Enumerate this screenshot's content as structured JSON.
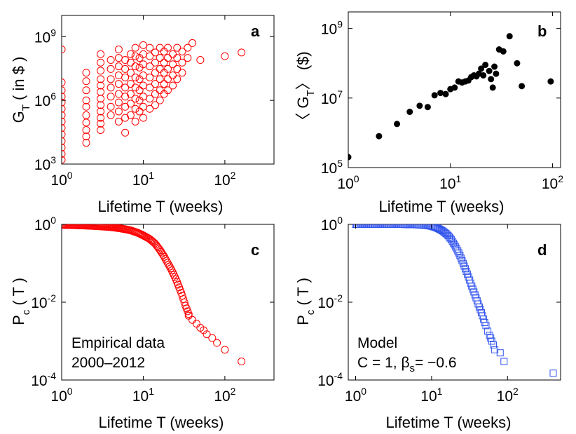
{
  "chart_data": [
    {
      "id": "a",
      "type": "scatter",
      "panel_label": "a",
      "xlabel": "Lifetime T (weeks)",
      "ylabel": {
        "main": "G",
        "sub": "T",
        "rest": " ( in $ )"
      },
      "x_scale": "log",
      "y_scale": "log",
      "xlim": [
        1,
        400
      ],
      "ylim": [
        1000,
        10000000000
      ],
      "x_ticks": [
        {
          "base": "10",
          "exp": "0",
          "value": 1
        },
        {
          "base": "10",
          "exp": "1",
          "value": 10
        },
        {
          "base": "10",
          "exp": "2",
          "value": 100
        }
      ],
      "y_ticks": [
        {
          "base": "10",
          "exp": "3",
          "value": 1000
        },
        {
          "base": "10",
          "exp": "6",
          "value": 1000000
        },
        {
          "base": "10",
          "exp": "9",
          "value": 1000000000
        }
      ],
      "marker": "open-circle",
      "color": "#ff0000",
      "points": [
        [
          1,
          1600
        ],
        [
          1,
          3000
        ],
        [
          1,
          6000
        ],
        [
          1,
          12000
        ],
        [
          1,
          25000
        ],
        [
          1,
          50000
        ],
        [
          1,
          100000
        ],
        [
          1,
          200000
        ],
        [
          1,
          400000
        ],
        [
          1,
          800000
        ],
        [
          1,
          1500000
        ],
        [
          1,
          3000000
        ],
        [
          1,
          7000000
        ],
        [
          1,
          250000000
        ],
        [
          2,
          10000
        ],
        [
          2,
          20000
        ],
        [
          2,
          40000
        ],
        [
          2,
          90000
        ],
        [
          2,
          200000
        ],
        [
          2,
          500000
        ],
        [
          2,
          1000000
        ],
        [
          2,
          3000000
        ],
        [
          2,
          8000000
        ],
        [
          2,
          20000000
        ],
        [
          3,
          40000
        ],
        [
          3,
          80000
        ],
        [
          3,
          150000
        ],
        [
          3,
          300000
        ],
        [
          3,
          600000
        ],
        [
          3,
          1200000
        ],
        [
          3,
          2500000
        ],
        [
          3,
          5000000
        ],
        [
          3,
          10000000
        ],
        [
          3,
          25000000
        ],
        [
          3,
          60000000
        ],
        [
          3,
          150000000
        ],
        [
          4,
          200000
        ],
        [
          4,
          500000
        ],
        [
          4,
          1500000
        ],
        [
          4,
          4000000
        ],
        [
          4,
          10000000
        ],
        [
          4,
          30000000
        ],
        [
          4,
          80000000
        ],
        [
          5,
          100000
        ],
        [
          5,
          300000
        ],
        [
          5,
          800000
        ],
        [
          5,
          2000000
        ],
        [
          5,
          6000000
        ],
        [
          5,
          15000000
        ],
        [
          5,
          40000000
        ],
        [
          5,
          100000000
        ],
        [
          5,
          250000000
        ],
        [
          6,
          30000
        ],
        [
          6,
          150000
        ],
        [
          6,
          500000
        ],
        [
          6,
          1500000
        ],
        [
          6,
          4000000
        ],
        [
          6,
          12000000
        ],
        [
          6,
          30000000
        ],
        [
          6,
          80000000
        ],
        [
          7,
          200000
        ],
        [
          7,
          700000
        ],
        [
          7,
          2000000
        ],
        [
          7,
          6000000
        ],
        [
          7,
          20000000
        ],
        [
          7,
          60000000
        ],
        [
          7,
          150000000
        ],
        [
          8,
          100000
        ],
        [
          8,
          400000
        ],
        [
          8,
          1200000
        ],
        [
          8,
          4000000
        ],
        [
          8,
          12000000
        ],
        [
          8,
          40000000
        ],
        [
          8,
          120000000
        ],
        [
          8,
          300000000
        ],
        [
          9,
          300000
        ],
        [
          9,
          1000000
        ],
        [
          9,
          3000000
        ],
        [
          9,
          10000000
        ],
        [
          9,
          35000000
        ],
        [
          9,
          100000000
        ],
        [
          10,
          150000
        ],
        [
          10,
          500000
        ],
        [
          10,
          1500000
        ],
        [
          10,
          5000000
        ],
        [
          10,
          15000000
        ],
        [
          10,
          50000000
        ],
        [
          10,
          150000000
        ],
        [
          10,
          400000000
        ],
        [
          12,
          400000
        ],
        [
          12,
          1200000
        ],
        [
          12,
          4000000
        ],
        [
          12,
          12000000
        ],
        [
          12,
          40000000
        ],
        [
          12,
          120000000
        ],
        [
          12,
          300000000
        ],
        [
          14,
          600000
        ],
        [
          14,
          2000000
        ],
        [
          14,
          6000000
        ],
        [
          14,
          20000000
        ],
        [
          14,
          60000000
        ],
        [
          14,
          180000000
        ],
        [
          16,
          1000000
        ],
        [
          16,
          3000000
        ],
        [
          16,
          10000000
        ],
        [
          16,
          30000000
        ],
        [
          16,
          100000000
        ],
        [
          16,
          300000000
        ],
        [
          18,
          2000000
        ],
        [
          18,
          6000000
        ],
        [
          18,
          20000000
        ],
        [
          18,
          60000000
        ],
        [
          18,
          200000000
        ],
        [
          20,
          3000000
        ],
        [
          20,
          10000000
        ],
        [
          20,
          30000000
        ],
        [
          20,
          100000000
        ],
        [
          20,
          300000000
        ],
        [
          23,
          5000000
        ],
        [
          23,
          15000000
        ],
        [
          23,
          50000000
        ],
        [
          23,
          150000000
        ],
        [
          26,
          10000000
        ],
        [
          26,
          30000000
        ],
        [
          26,
          100000000
        ],
        [
          26,
          300000000
        ],
        [
          30,
          20000000
        ],
        [
          30,
          60000000
        ],
        [
          30,
          200000000
        ],
        [
          35,
          100000000
        ],
        [
          35,
          300000000
        ],
        [
          40,
          500000000
        ],
        [
          50,
          80000000
        ],
        [
          100,
          120000000
        ],
        [
          160,
          180000000
        ]
      ]
    },
    {
      "id": "b",
      "type": "scatter",
      "panel_label": "b",
      "xlabel": "Lifetime T (weeks)",
      "ylabel": {
        "main": "〈 G",
        "sub": "T",
        "rest": "〉 ($)"
      },
      "x_scale": "log",
      "y_scale": "log",
      "xlim": [
        1,
        120
      ],
      "ylim": [
        100000,
        3000000000
      ],
      "x_ticks": [
        {
          "base": "10",
          "exp": "0",
          "value": 1
        },
        {
          "base": "10",
          "exp": "1",
          "value": 10
        },
        {
          "base": "10",
          "exp": "2",
          "value": 100
        }
      ],
      "y_ticks": [
        {
          "base": "10",
          "exp": "5",
          "value": 100000
        },
        {
          "base": "10",
          "exp": "7",
          "value": 10000000
        },
        {
          "base": "10",
          "exp": "9",
          "value": 1000000000
        }
      ],
      "marker": "filled-circle",
      "color": "#000000",
      "points": [
        [
          1,
          200000
        ],
        [
          2,
          800000
        ],
        [
          3,
          1800000
        ],
        [
          4,
          4000000
        ],
        [
          5,
          6000000
        ],
        [
          6,
          5500000
        ],
        [
          7,
          12000000
        ],
        [
          8,
          14000000
        ],
        [
          9,
          13000000
        ],
        [
          10,
          18000000
        ],
        [
          11,
          20000000
        ],
        [
          12,
          30000000
        ],
        [
          13,
          28000000
        ],
        [
          14,
          30000000
        ],
        [
          15,
          32000000
        ],
        [
          16,
          40000000
        ],
        [
          17,
          45000000
        ],
        [
          18,
          42000000
        ],
        [
          19,
          50000000
        ],
        [
          20,
          70000000
        ],
        [
          21,
          45000000
        ],
        [
          22,
          90000000
        ],
        [
          24,
          60000000
        ],
        [
          25,
          35000000
        ],
        [
          26,
          20000000
        ],
        [
          27,
          80000000
        ],
        [
          28,
          50000000
        ],
        [
          30,
          250000000
        ],
        [
          33,
          220000000
        ],
        [
          38,
          600000000
        ],
        [
          45,
          100000000
        ],
        [
          50,
          22000000
        ],
        [
          96,
          30000000
        ]
      ]
    },
    {
      "id": "c",
      "type": "scatter",
      "panel_label": "c",
      "xlabel": "Lifetime T (weeks)",
      "ylabel": {
        "main": "P",
        "sub": "c",
        "rest": " ( T )"
      },
      "x_scale": "log",
      "y_scale": "log",
      "xlim": [
        1,
        400
      ],
      "ylim": [
        0.0001,
        1
      ],
      "x_ticks": [
        {
          "base": "10",
          "exp": "0",
          "value": 1
        },
        {
          "base": "10",
          "exp": "1",
          "value": 10
        },
        {
          "base": "10",
          "exp": "2",
          "value": 100
        }
      ],
      "y_ticks": [
        {
          "base": "10",
          "exp": "-4",
          "value": 0.0001
        },
        {
          "base": "10",
          "exp": "-2",
          "value": 0.01
        },
        {
          "base": "10",
          "exp": "0",
          "value": 1
        }
      ],
      "marker": "open-circle",
      "color": "#ff0000",
      "annotation": [
        "Empirical data",
        "2000–2012"
      ],
      "curve": [
        [
          1,
          0.97
        ],
        [
          1.2,
          0.96
        ],
        [
          1.5,
          0.95
        ],
        [
          2,
          0.93
        ],
        [
          2.5,
          0.91
        ],
        [
          3,
          0.89
        ],
        [
          4,
          0.85
        ],
        [
          5,
          0.8
        ],
        [
          6,
          0.75
        ],
        [
          7,
          0.7
        ],
        [
          8,
          0.64
        ],
        [
          9,
          0.58
        ],
        [
          10,
          0.52
        ],
        [
          12,
          0.42
        ],
        [
          14,
          0.32
        ],
        [
          16,
          0.22
        ],
        [
          18,
          0.15
        ],
        [
          20,
          0.1
        ],
        [
          22,
          0.07
        ],
        [
          25,
          0.04
        ],
        [
          28,
          0.022
        ],
        [
          30,
          0.015
        ],
        [
          33,
          0.008
        ],
        [
          36,
          0.005
        ]
      ],
      "tail": [
        [
          36,
          0.0045
        ],
        [
          40,
          0.0035
        ],
        [
          45,
          0.0028
        ],
        [
          50,
          0.0022
        ],
        [
          55,
          0.0019
        ],
        [
          60,
          0.0015
        ],
        [
          70,
          0.0012
        ],
        [
          80,
          0.0009
        ],
        [
          100,
          0.0006
        ],
        [
          160,
          0.0003
        ]
      ]
    },
    {
      "id": "d",
      "type": "scatter",
      "panel_label": "d",
      "xlabel": "Lifetime T (weeks)",
      "ylabel": {
        "main": "P",
        "sub": "c",
        "rest": " ( T )"
      },
      "x_scale": "log",
      "y_scale": "log",
      "xlim": [
        0.8,
        500
      ],
      "ylim": [
        0.0001,
        1
      ],
      "x_ticks": [
        {
          "base": "10",
          "exp": "0",
          "value": 1
        },
        {
          "base": "10",
          "exp": "1",
          "value": 10
        },
        {
          "base": "10",
          "exp": "2",
          "value": 100
        }
      ],
      "y_ticks": [
        {
          "base": "10",
          "exp": "-4",
          "value": 0.0001
        },
        {
          "base": "10",
          "exp": "-2",
          "value": 0.01
        },
        {
          "base": "10",
          "exp": "0",
          "value": 1
        }
      ],
      "marker": "open-square",
      "color": "#3355ee",
      "annotation": [
        "Model",
        "C = 1, β",
        "s",
        "= −0.6"
      ],
      "curve": [
        [
          1,
          1
        ],
        [
          2,
          1
        ],
        [
          3,
          1
        ],
        [
          4,
          1
        ],
        [
          5,
          0.99
        ],
        [
          6,
          0.98
        ],
        [
          7,
          0.97
        ],
        [
          8,
          0.95
        ],
        [
          9,
          0.93
        ],
        [
          10,
          0.9
        ],
        [
          12,
          0.8
        ],
        [
          14,
          0.68
        ],
        [
          16,
          0.55
        ],
        [
          18,
          0.42
        ],
        [
          20,
          0.3
        ],
        [
          23,
          0.18
        ],
        [
          26,
          0.1
        ],
        [
          30,
          0.05
        ],
        [
          34,
          0.025
        ],
        [
          38,
          0.014
        ],
        [
          42,
          0.008
        ],
        [
          46,
          0.005
        ],
        [
          50,
          0.003
        ]
      ],
      "tail": [
        [
          52,
          0.0025
        ],
        [
          55,
          0.0018
        ],
        [
          58,
          0.0014
        ],
        [
          60,
          0.0012
        ],
        [
          62,
          0.001
        ],
        [
          65,
          0.0008
        ],
        [
          68,
          0.0006
        ],
        [
          80,
          0.0005
        ],
        [
          90,
          0.0003
        ],
        [
          400,
          0.00015
        ]
      ]
    }
  ]
}
